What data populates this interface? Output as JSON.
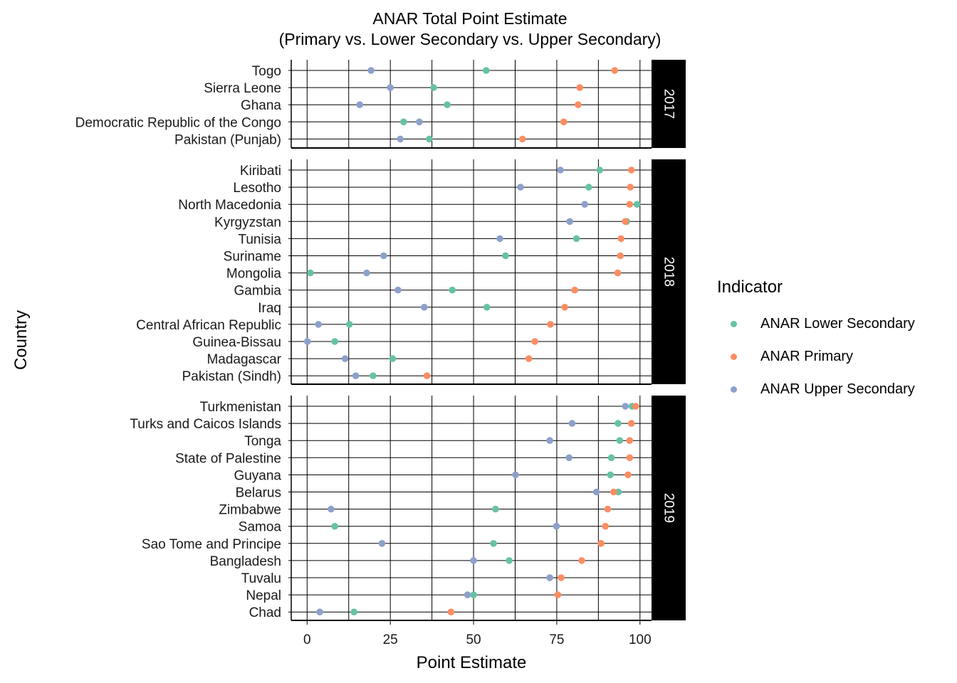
{
  "chart_data": {
    "type": "scatter",
    "subtype": "faceted dot plot",
    "title": "ANAR Total Point Estimate",
    "subtitle": "(Primary vs. Lower Secondary vs. Upper Secondary)",
    "xlabel": "Point Estimate",
    "ylabel": "Country",
    "xlim": [
      -5,
      104
    ],
    "x_ticks": [
      0,
      25,
      50,
      75,
      100
    ],
    "grid": true,
    "legend": {
      "title": "Indicator",
      "position": "right",
      "entries": [
        {
          "label": "ANAR Lower Secondary",
          "color": "#66c2a5"
        },
        {
          "label": "ANAR Primary",
          "color": "#fc8d62"
        },
        {
          "label": "ANAR Upper Secondary",
          "color": "#8da0cb"
        }
      ]
    },
    "facets": [
      {
        "label": "2017",
        "rows": [
          {
            "country": "Togo",
            "lower": 53.8,
            "primary": 92.4,
            "upper": 19.2
          },
          {
            "country": "Sierra Leone",
            "lower": 38.0,
            "primary": 81.9,
            "upper": 25.0
          },
          {
            "country": "Ghana",
            "lower": 42.1,
            "primary": 81.4,
            "upper": 15.8
          },
          {
            "country": "Democratic Republic of the Congo",
            "lower": 29.0,
            "primary": 77.1,
            "upper": 33.7
          },
          {
            "country": "Pakistan (Punjab)",
            "lower": 36.7,
            "primary": 64.7,
            "upper": 28.0
          }
        ]
      },
      {
        "label": "2018",
        "rows": [
          {
            "country": "Kiribati",
            "lower": 87.9,
            "primary": 97.4,
            "upper": 76.1
          },
          {
            "country": "Lesotho",
            "lower": 84.6,
            "primary": 97.1,
            "upper": 64.1
          },
          {
            "country": "North Macedonia",
            "lower": 99.1,
            "primary": 96.9,
            "upper": 83.4
          },
          {
            "country": "Kyrgyzstan",
            "lower": 96.0,
            "primary": 95.6,
            "upper": 78.9
          },
          {
            "country": "Tunisia",
            "lower": 80.9,
            "primary": 94.3,
            "upper": 57.9
          },
          {
            "country": "Suriname",
            "lower": 59.6,
            "primary": 94.1,
            "upper": 23.0
          },
          {
            "country": "Mongolia",
            "lower": 1.0,
            "primary": 93.3,
            "upper": 17.9
          },
          {
            "country": "Gambia",
            "lower": 43.6,
            "primary": 80.4,
            "upper": 27.3
          },
          {
            "country": "Iraq",
            "lower": 54.0,
            "primary": 77.4,
            "upper": 35.2
          },
          {
            "country": "Central African Republic",
            "lower": 12.7,
            "primary": 73.1,
            "upper": 3.4
          },
          {
            "country": "Guinea-Bissau",
            "lower": 8.3,
            "primary": 68.4,
            "upper": 0.1
          },
          {
            "country": "Madagascar",
            "lower": 25.7,
            "primary": 66.6,
            "upper": 11.4
          },
          {
            "country": "Pakistan (Sindh)",
            "lower": 19.8,
            "primary": 36.0,
            "upper": 14.6
          }
        ]
      },
      {
        "label": "2019",
        "rows": [
          {
            "country": "Turkmenistan",
            "lower": 97.6,
            "primary": 98.7,
            "upper": 95.6
          },
          {
            "country": "Turks and Caicos Islands",
            "lower": 93.4,
            "primary": 97.4,
            "upper": 79.6
          },
          {
            "country": "Tonga",
            "lower": 93.9,
            "primary": 96.9,
            "upper": 72.9
          },
          {
            "country": "State of Palestine",
            "lower": 91.4,
            "primary": 96.9,
            "upper": 78.7
          },
          {
            "country": "Guyana",
            "lower": 91.1,
            "primary": 96.4,
            "upper": 62.6
          },
          {
            "country": "Belarus",
            "lower": 93.5,
            "primary": 92.1,
            "upper": 86.9
          },
          {
            "country": "Zimbabwe",
            "lower": 56.6,
            "primary": 90.3,
            "upper": 7.2
          },
          {
            "country": "Samoa",
            "lower": 8.3,
            "primary": 89.6,
            "upper": 74.9
          },
          {
            "country": "Sao Tome and Principe",
            "lower": 56.0,
            "primary": 88.3,
            "upper": 22.5
          },
          {
            "country": "Bangladesh",
            "lower": 60.7,
            "primary": 82.5,
            "upper": 50.0
          },
          {
            "country": "Tuvalu",
            "lower": 72.9,
            "primary": 76.3,
            "upper": 72.9
          },
          {
            "country": "Nepal",
            "lower": 50.0,
            "primary": 75.3,
            "upper": 48.2
          },
          {
            "country": "Chad",
            "lower": 14.1,
            "primary": 43.2,
            "upper": 3.8
          }
        ]
      }
    ]
  },
  "colors": {
    "lower": "#66c2a5",
    "primary": "#fc8d62",
    "upper": "#8da0cb",
    "strip": "#000000"
  }
}
